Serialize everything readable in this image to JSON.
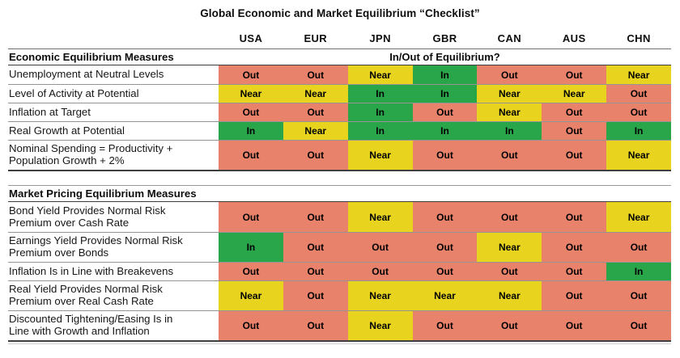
{
  "chart_data": {
    "type": "table",
    "title": "Global Economic and Market Equilibrium “Checklist”",
    "columns": [
      "USA",
      "EUR",
      "JPN",
      "GBR",
      "CAN",
      "AUS",
      "CHN"
    ],
    "legend_values": [
      "In",
      "Near",
      "Out"
    ],
    "status_colors": {
      "In": "#29A64A",
      "Near": "#E8D41F",
      "Out": "#E8826A"
    },
    "layout": {
      "grid": "off",
      "value_cells": "color-coded by status"
    },
    "sections": [
      {
        "header": "Economic Equilibrium Measures",
        "header_right": "In/Out of Equilibrium?",
        "rows": [
          {
            "label": "Unemployment at Neutral Levels",
            "values": [
              "Out",
              "Out",
              "Near",
              "In",
              "Out",
              "Out",
              "Near"
            ]
          },
          {
            "label": "Level of Activity at Potential",
            "values": [
              "Near",
              "Near",
              "In",
              "In",
              "Near",
              "Near",
              "Out"
            ]
          },
          {
            "label": "Inflation at Target",
            "values": [
              "Out",
              "Out",
              "In",
              "Out",
              "Near",
              "Out",
              "Out"
            ]
          },
          {
            "label": "Real Growth at Potential",
            "values": [
              "In",
              "Near",
              "In",
              "In",
              "In",
              "Out",
              "In"
            ]
          },
          {
            "label": "Nominal Spending = Productivity +\nPopulation Growth + 2%",
            "values": [
              "Out",
              "Out",
              "Near",
              "Out",
              "Out",
              "Out",
              "Near"
            ]
          }
        ]
      },
      {
        "header": "Market Pricing Equilibrium Measures",
        "header_right": "",
        "rows": [
          {
            "label": "Bond Yield Provides Normal Risk\nPremium over Cash Rate",
            "values": [
              "Out",
              "Out",
              "Near",
              "Out",
              "Out",
              "Out",
              "Near"
            ]
          },
          {
            "label": "Earnings Yield Provides Normal Risk\nPremium over Bonds",
            "values": [
              "In",
              "Out",
              "Out",
              "Out",
              "Near",
              "Out",
              "Out"
            ]
          },
          {
            "label": "Inflation Is in Line with Breakevens",
            "values": [
              "Out",
              "Out",
              "Out",
              "Out",
              "Out",
              "Out",
              "In"
            ]
          },
          {
            "label": "Real Yield Provides Normal Risk\nPremium over Real Cash Rate",
            "values": [
              "Near",
              "Out",
              "Near",
              "Near",
              "Near",
              "Out",
              "Out"
            ]
          },
          {
            "label": "Discounted Tightening/Easing Is in\nLine with Growth and Inflation",
            "values": [
              "Out",
              "Out",
              "Near",
              "Out",
              "Out",
              "Out",
              "Out"
            ]
          }
        ]
      }
    ]
  }
}
